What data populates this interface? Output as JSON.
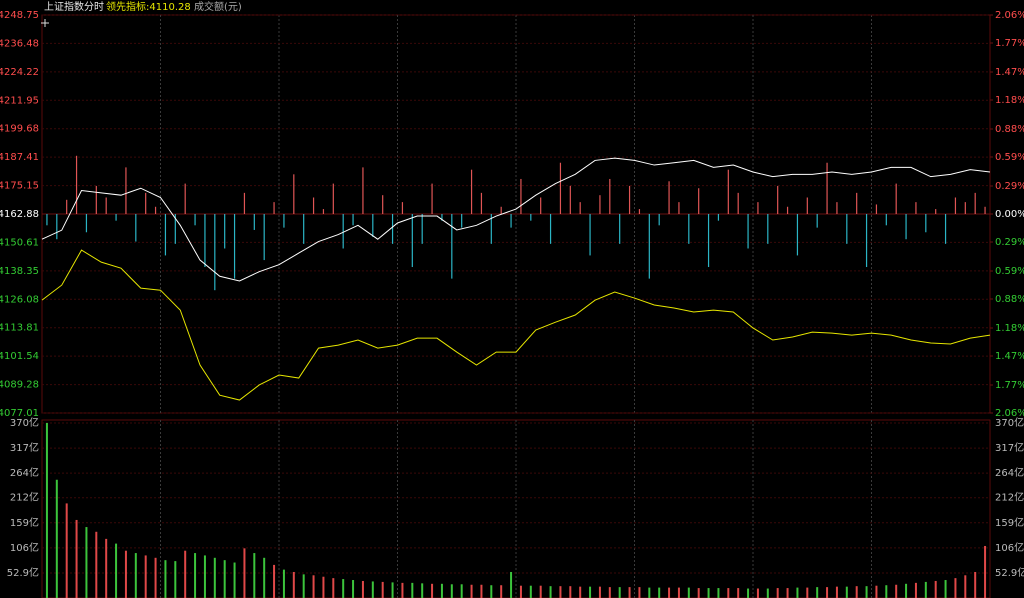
{
  "header": {
    "title": "上证指数",
    "mode": "分时",
    "indicator": "领先指标:4110.28",
    "volume_label": "成交额(元)"
  },
  "chart_data": [
    {
      "type": "line",
      "ylim": [
        4077.01,
        4248.75
      ],
      "yticks": [
        4248.75,
        4236.48,
        4224.22,
        4211.95,
        4199.68,
        4187.41,
        4175.15,
        4162.88,
        4150.61,
        4138.35,
        4126.08,
        4113.81,
        4101.54,
        4089.28,
        4077.01
      ],
      "y2lim": [
        -2.06,
        2.06
      ],
      "y2ticks": [
        {
          "value": 2.06,
          "label": "2.06%"
        },
        {
          "value": 1.77,
          "label": "1.77%"
        },
        {
          "value": 1.47,
          "label": "1.47%"
        },
        {
          "value": 1.18,
          "label": "1.18%"
        },
        {
          "value": 0.88,
          "label": "0.88%"
        },
        {
          "value": 0.59,
          "label": "0.59%"
        },
        {
          "value": 0.29,
          "label": "0.29%"
        },
        {
          "value": 0,
          "label": "0.00%"
        },
        {
          "value": -0.29,
          "label": "0.29%"
        },
        {
          "value": -0.59,
          "label": "0.59%"
        },
        {
          "value": -0.88,
          "label": "0.88%"
        },
        {
          "value": -1.18,
          "label": "1.18%"
        },
        {
          "value": -1.47,
          "label": "1.47%"
        },
        {
          "value": -1.77,
          "label": "1.77%"
        },
        {
          "value": -2.06,
          "label": "2.06%"
        }
      ],
      "grid": true,
      "up_color": "#ff4d4d",
      "down_color": "#33cc33",
      "flat_color": "#ffffff",
      "series": [
        {
          "color": "#ffffff",
          "values": [
            4152,
            4155.9,
            4173,
            4172,
            4171,
            4174,
            4170,
            4158,
            4143,
            4136,
            4134,
            4138,
            4141,
            4146,
            4151,
            4154,
            4158,
            4152,
            4159,
            4162,
            4162,
            4156,
            4158,
            4162,
            4165,
            4171,
            4176,
            4180,
            4186,
            4187,
            4186,
            4184,
            4185,
            4186,
            4183,
            4184,
            4181,
            4179,
            4180,
            4180,
            4181,
            4180,
            4181,
            4183,
            4183,
            4179,
            4180,
            4182,
            4181
          ]
        },
        {
          "color": "#e6e600",
          "values": [
            4125.7,
            4132.2,
            4147.3,
            4142.1,
            4139.5,
            4130.9,
            4130,
            4121.4,
            4097.7,
            4084.7,
            4082.6,
            4089.1,
            4093.4,
            4092.1,
            4105,
            4106.3,
            4108.5,
            4105,
            4106.3,
            4109.3,
            4109.3,
            4103.3,
            4097.7,
            4103.3,
            4103.3,
            4112.8,
            4116.2,
            4119.3,
            4125.7,
            4129.2,
            4126.6,
            4123.6,
            4122.3,
            4120.6,
            4121.4,
            4120.6,
            4113.7,
            4108.5,
            4109.8,
            4111.9,
            4111.5,
            4110.6,
            4111.5,
            4110.6,
            4108.5,
            4107.2,
            4106.8,
            4109.3,
            4110.6
          ]
        }
      ],
      "bars": {
        "up_color": "#e05555",
        "down_color": "#2bb5c5",
        "values": [
          4158,
          4152,
          4169,
          4188,
          4155,
          4175,
          4170,
          4160,
          4183,
          4151,
          4172,
          4166,
          4145,
          4150,
          4176,
          4158,
          4140,
          4130,
          4148,
          4135,
          4172,
          4156,
          4143,
          4168,
          4157,
          4180,
          4150,
          4170,
          4165,
          4176,
          4148,
          4158,
          4183,
          4153,
          4171,
          4150,
          4168,
          4140,
          4150,
          4176,
          4160,
          4135,
          4157,
          4182,
          4172,
          4150,
          4166,
          4157,
          4178,
          4160,
          4170,
          4150,
          4185,
          4175,
          4168,
          4145,
          4171,
          4178,
          4150,
          4175,
          4165,
          4135,
          4158,
          4177,
          4168,
          4150,
          4174,
          4140,
          4160,
          4182,
          4172,
          4148,
          4168,
          4150,
          4175,
          4166,
          4145,
          4170,
          4157,
          4185,
          4168,
          4150,
          4172,
          4140,
          4167,
          4158,
          4176,
          4152,
          4168,
          4155,
          4165,
          4150,
          4170,
          4168,
          4172,
          4166
        ]
      }
    },
    {
      "type": "bar",
      "ylim": [
        0,
        370
      ],
      "yticks": [
        {
          "value": 370,
          "label": "370亿"
        },
        {
          "value": 317,
          "label": "317亿"
        },
        {
          "value": 264,
          "label": "264亿"
        },
        {
          "value": 212,
          "label": "212亿"
        },
        {
          "value": 159,
          "label": "159亿"
        },
        {
          "value": 106,
          "label": "106亿"
        },
        {
          "value": 52.9,
          "label": "52.9亿"
        }
      ],
      "up_color": "#e04848",
      "down_color": "#3cc43c",
      "values": [
        370,
        250,
        200,
        165,
        150,
        140,
        125,
        115,
        100,
        95,
        90,
        85,
        80,
        78,
        100,
        95,
        90,
        85,
        80,
        75,
        105,
        95,
        85,
        70,
        60,
        55,
        50,
        48,
        45,
        42,
        40,
        38,
        36,
        35,
        34,
        33,
        32,
        32,
        31,
        30,
        30,
        29,
        29,
        28,
        28,
        27,
        27,
        55,
        26,
        26,
        26,
        25,
        25,
        25,
        24,
        24,
        24,
        23,
        23,
        23,
        23,
        22,
        22,
        22,
        22,
        22,
        21,
        21,
        21,
        21,
        21,
        20,
        20,
        20,
        21,
        21,
        22,
        22,
        23,
        23,
        24,
        24,
        25,
        25,
        26,
        27,
        28,
        30,
        32,
        34,
        36,
        38,
        42,
        48,
        55,
        110
      ]
    }
  ]
}
